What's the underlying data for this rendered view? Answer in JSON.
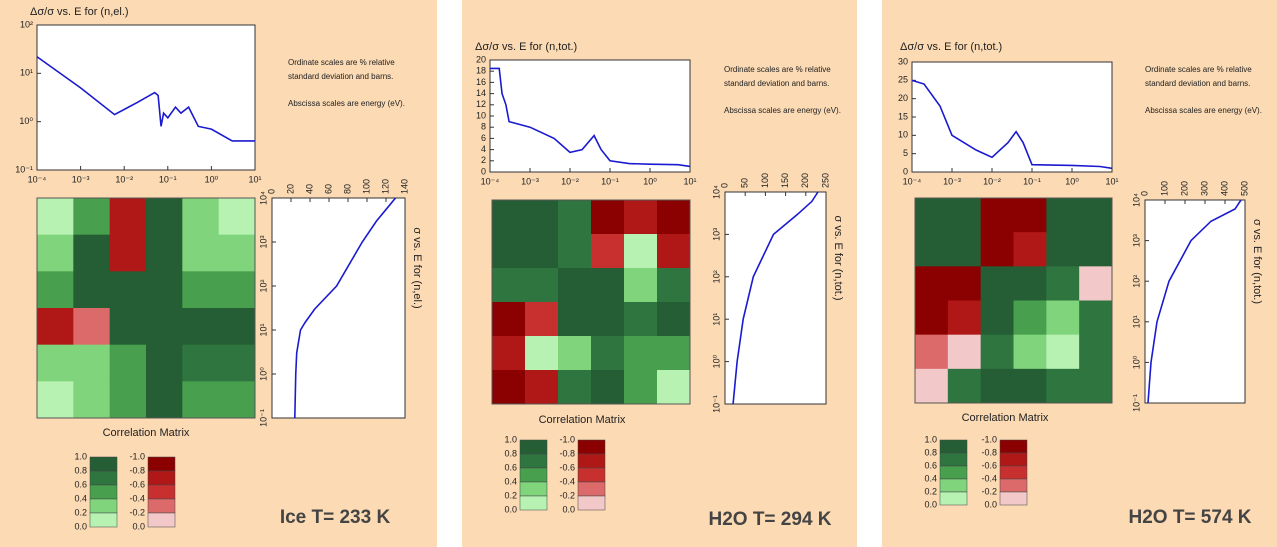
{
  "panels": [
    {
      "label": "Ice T= 233 K",
      "notes": [
        "Ordinate scales are % relative",
        "standard deviation and barns.",
        "Abscissa scales are energy (eV)."
      ]
    },
    {
      "label": "H2O T= 294 K",
      "notes": [
        "Ordinate scales are % relative",
        "standard deviation and barns.",
        "Abscissa scales are energy (eV)."
      ]
    },
    {
      "label": "H2O T= 574 K",
      "notes": [
        "Ordinate scales are % relative",
        "standard deviation and barns.",
        "Abscissa scales are energy (eV)."
      ]
    }
  ],
  "chart_data": [
    {
      "type": "line",
      "title": "Δσ/σ vs. E for (n,el.)",
      "xlog": true,
      "ylog": true,
      "color": "#1a1ad0",
      "x": [
        0.0001,
        0.001,
        0.006,
        0.02,
        0.05,
        0.06,
        0.07,
        0.08,
        0.1,
        0.15,
        0.2,
        0.3,
        0.5,
        1,
        3,
        10
      ],
      "values": [
        22,
        5,
        1.4,
        2.5,
        4,
        3.5,
        0.8,
        1.5,
        1.2,
        2,
        1.5,
        2,
        0.8,
        0.7,
        0.4,
        0.4
      ],
      "xlim": [
        0.0001,
        10
      ],
      "xticks": [
        {
          "value": 0.0001,
          "label": "10⁻⁴"
        },
        {
          "value": 0.001,
          "label": "10⁻³"
        },
        {
          "value": 0.01,
          "label": "10⁻²"
        },
        {
          "value": 0.1,
          "label": "10⁻¹"
        },
        {
          "value": 1,
          "label": "10⁰"
        },
        {
          "value": 10,
          "label": "10¹"
        }
      ],
      "ylim": [
        0.1,
        100
      ],
      "yticks": [
        {
          "value": 0.1,
          "label": "10⁻¹"
        },
        {
          "value": 1,
          "label": "10⁰"
        },
        {
          "value": 10,
          "label": "10¹"
        },
        {
          "value": 100,
          "label": "10²"
        }
      ]
    },
    {
      "type": "heatmap",
      "title": "Correlation Matrix",
      "values": [
        [
          0.1,
          0.5,
          -0.6,
          0.9,
          0.3,
          0.1
        ],
        [
          0.3,
          0.9,
          -0.7,
          0.9,
          0.3,
          0.3
        ],
        [
          0.5,
          0.9,
          0.9,
          0.9,
          0.5,
          0.5
        ],
        [
          -0.6,
          -0.3,
          0.9,
          0.9,
          0.9,
          0.9
        ],
        [
          0.3,
          0.3,
          0.5,
          0.9,
          0.7,
          0.7
        ],
        [
          0.1,
          0.3,
          0.5,
          0.9,
          0.5,
          0.5
        ]
      ],
      "colorbar": {
        "positive": {
          "ticks": [
            {
              "value": 1,
              "label": "1.0"
            },
            {
              "value": 0.8,
              "label": "0.8"
            },
            {
              "value": 0.6,
              "label": "0.6"
            },
            {
              "value": 0.4,
              "label": "0.4"
            },
            {
              "value": 0.2,
              "label": "0.2"
            },
            {
              "value": 0,
              "label": "0.0"
            }
          ],
          "colors": [
            "#255e35",
            "#2f7540",
            "#48a04e",
            "#7fd47c",
            "#b8f2b2"
          ]
        },
        "negative": {
          "ticks": [
            {
              "value": -1,
              "label": "-1.0"
            },
            {
              "value": -0.8,
              "label": "-0.8"
            },
            {
              "value": -0.6,
              "label": "-0.6"
            },
            {
              "value": -0.4,
              "label": "-0.4"
            },
            {
              "value": -0.2,
              "label": "-0.2"
            },
            {
              "value": 0,
              "label": "0.0"
            }
          ],
          "colors": [
            "#8b0000",
            "#b01818",
            "#c83030",
            "#dc6a6a",
            "#f2c8c8"
          ]
        }
      }
    },
    {
      "type": "line",
      "orientation": "vertical",
      "title": "σ vs. E for (n,el.)",
      "xlog": true,
      "color": "#1a1ad0",
      "x": [
        0.1,
        1,
        3,
        10,
        15,
        30,
        100,
        1000,
        3000,
        10000
      ],
      "values": [
        24,
        25,
        26,
        30,
        35,
        45,
        68,
        95,
        110,
        130
      ],
      "xlim": [
        0.1,
        10000
      ],
      "xticks": [
        {
          "value": 0.1,
          "label": "10⁻¹"
        },
        {
          "value": 1,
          "label": "10⁰"
        },
        {
          "value": 10,
          "label": "10¹"
        },
        {
          "value": 100,
          "label": "10²"
        },
        {
          "value": 1000,
          "label": "10³"
        },
        {
          "value": 10000,
          "label": "10⁴"
        }
      ],
      "ylim": [
        0,
        140
      ],
      "yticks": [
        0,
        20,
        40,
        60,
        80,
        100,
        120,
        140
      ]
    },
    {
      "type": "line",
      "title": "Δσ/σ vs. E for (n,tot.)",
      "xlog": true,
      "color": "#1a1ad0",
      "x": [
        0.0001,
        0.00017,
        0.0002,
        0.00025,
        0.0003,
        0.001,
        0.004,
        0.01,
        0.02,
        0.04,
        0.06,
        0.1,
        0.3,
        1,
        5,
        10
      ],
      "values": [
        18.5,
        18.5,
        14,
        12,
        9,
        8,
        6,
        3.5,
        4,
        6.5,
        4,
        2,
        1.5,
        1.4,
        1.3,
        1
      ],
      "xlim": [
        0.0001,
        10
      ],
      "xticks": [
        {
          "value": 0.0001,
          "label": "10⁻⁴"
        },
        {
          "value": 0.001,
          "label": "10⁻³"
        },
        {
          "value": 0.01,
          "label": "10⁻²"
        },
        {
          "value": 0.1,
          "label": "10⁻¹"
        },
        {
          "value": 1,
          "label": "10⁰"
        },
        {
          "value": 10,
          "label": "10¹"
        }
      ],
      "ylim": [
        0,
        20
      ],
      "yticks": [
        0,
        2,
        4,
        6,
        8,
        10,
        12,
        14,
        16,
        18,
        20
      ]
    },
    {
      "type": "heatmap",
      "title": "Correlation Matrix",
      "values": [
        [
          0.9,
          0.9,
          0.7,
          -0.9,
          -0.7,
          -0.9
        ],
        [
          0.9,
          0.9,
          0.7,
          -0.5,
          0.1,
          -0.7
        ],
        [
          0.7,
          0.7,
          0.9,
          0.9,
          0.3,
          0.7
        ],
        [
          -0.9,
          -0.5,
          0.9,
          0.9,
          0.7,
          0.9
        ],
        [
          -0.7,
          0.1,
          0.3,
          0.7,
          0.5,
          0.5
        ],
        [
          -0.9,
          -0.7,
          0.7,
          0.9,
          0.5,
          0.1
        ]
      ],
      "colorbar": {
        "positive": {
          "ticks": [
            {
              "value": 1,
              "label": "1.0"
            },
            {
              "value": 0.8,
              "label": "0.8"
            },
            {
              "value": 0.6,
              "label": "0.6"
            },
            {
              "value": 0.4,
              "label": "0.4"
            },
            {
              "value": 0.2,
              "label": "0.2"
            },
            {
              "value": 0,
              "label": "0.0"
            }
          ],
          "colors": [
            "#255e35",
            "#2f7540",
            "#48a04e",
            "#7fd47c",
            "#b8f2b2"
          ]
        },
        "negative": {
          "ticks": [
            {
              "value": -1,
              "label": "-1.0"
            },
            {
              "value": -0.8,
              "label": "-0.8"
            },
            {
              "value": -0.6,
              "label": "-0.6"
            },
            {
              "value": -0.4,
              "label": "-0.4"
            },
            {
              "value": -0.2,
              "label": "-0.2"
            },
            {
              "value": 0,
              "label": "0.0"
            }
          ],
          "colors": [
            "#8b0000",
            "#b01818",
            "#c83030",
            "#dc6a6a",
            "#f2c8c8"
          ]
        }
      }
    },
    {
      "type": "line",
      "orientation": "vertical",
      "title": "σ vs. E for (n,tot.)",
      "xlog": true,
      "color": "#1a1ad0",
      "x": [
        0.1,
        1,
        10,
        100,
        1000,
        3000,
        6000,
        10000
      ],
      "values": [
        20,
        30,
        45,
        70,
        120,
        180,
        215,
        230
      ],
      "xlim": [
        0.1,
        10000
      ],
      "xticks": [
        {
          "value": 0.1,
          "label": "10⁻¹"
        },
        {
          "value": 1,
          "label": "10⁰"
        },
        {
          "value": 10,
          "label": "10¹"
        },
        {
          "value": 100,
          "label": "10²"
        },
        {
          "value": 1000,
          "label": "10³"
        },
        {
          "value": 10000,
          "label": "10⁴"
        }
      ],
      "ylim": [
        0,
        250
      ],
      "yticks": [
        0,
        50,
        100,
        150,
        200,
        250
      ]
    },
    {
      "type": "line",
      "title": "Δσ/σ vs. E for (n,tot.)",
      "xlog": true,
      "color": "#1a1ad0",
      "x": [
        0.0001,
        0.0002,
        0.0005,
        0.001,
        0.004,
        0.01,
        0.025,
        0.04,
        0.06,
        0.1,
        1,
        5,
        10
      ],
      "values": [
        25,
        24,
        18,
        10,
        6,
        4,
        8,
        11,
        8,
        2,
        1.8,
        1.5,
        1
      ],
      "xlim": [
        0.0001,
        10
      ],
      "xticks": [
        {
          "value": 0.0001,
          "label": "10⁻⁴"
        },
        {
          "value": 0.001,
          "label": "10⁻³"
        },
        {
          "value": 0.01,
          "label": "10⁻²"
        },
        {
          "value": 0.1,
          "label": "10⁻¹"
        },
        {
          "value": 1,
          "label": "10⁰"
        },
        {
          "value": 10,
          "label": "10¹"
        }
      ],
      "ylim": [
        0,
        30
      ],
      "yticks": [
        0,
        5,
        10,
        15,
        20,
        25,
        30
      ]
    },
    {
      "type": "heatmap",
      "title": "Correlation Matrix",
      "values": [
        [
          0.9,
          0.9,
          -0.9,
          -0.9,
          0.9,
          0.9
        ],
        [
          0.9,
          0.9,
          -0.9,
          -0.7,
          0.9,
          0.9
        ],
        [
          -0.9,
          -0.9,
          0.9,
          0.9,
          0.7,
          -0.1
        ],
        [
          -0.9,
          -0.7,
          0.9,
          0.5,
          0.3,
          0.7
        ],
        [
          -0.3,
          -0.1,
          0.7,
          0.3,
          0.1,
          0.7
        ],
        [
          -0.1,
          0.7,
          0.9,
          0.9,
          0.7,
          0.7
        ]
      ],
      "colorbar": {
        "positive": {
          "ticks": [
            {
              "value": 1,
              "label": "1.0"
            },
            {
              "value": 0.8,
              "label": "0.8"
            },
            {
              "value": 0.6,
              "label": "0.6"
            },
            {
              "value": 0.4,
              "label": "0.4"
            },
            {
              "value": 0.2,
              "label": "0.2"
            },
            {
              "value": 0,
              "label": "0.0"
            }
          ],
          "colors": [
            "#255e35",
            "#2f7540",
            "#48a04e",
            "#7fd47c",
            "#b8f2b2"
          ]
        },
        "negative": {
          "ticks": [
            {
              "value": -1,
              "label": "-1.0"
            },
            {
              "value": -0.8,
              "label": "-0.8"
            },
            {
              "value": -0.6,
              "label": "-0.6"
            },
            {
              "value": -0.4,
              "label": "-0.4"
            },
            {
              "value": -0.2,
              "label": "-0.2"
            },
            {
              "value": 0,
              "label": "0.0"
            }
          ],
          "colors": [
            "#8b0000",
            "#b01818",
            "#c83030",
            "#dc6a6a",
            "#f2c8c8"
          ]
        }
      }
    },
    {
      "type": "line",
      "orientation": "vertical",
      "title": "σ vs. E for (n,tot.)",
      "xlog": true,
      "color": "#1a1ad0",
      "x": [
        0.1,
        1,
        10,
        100,
        1000,
        3000,
        6000,
        10000
      ],
      "values": [
        15,
        30,
        60,
        120,
        230,
        330,
        450,
        480
      ],
      "xlim": [
        0.1,
        10000
      ],
      "xticks": [
        {
          "value": 0.1,
          "label": "10⁻¹"
        },
        {
          "value": 1,
          "label": "10⁰"
        },
        {
          "value": 10,
          "label": "10¹"
        },
        {
          "value": 100,
          "label": "10²"
        },
        {
          "value": 1000,
          "label": "10³"
        },
        {
          "value": 10000,
          "label": "10⁴"
        }
      ],
      "ylim": [
        0,
        500
      ],
      "yticks": [
        0,
        100,
        200,
        300,
        400,
        500
      ]
    }
  ]
}
